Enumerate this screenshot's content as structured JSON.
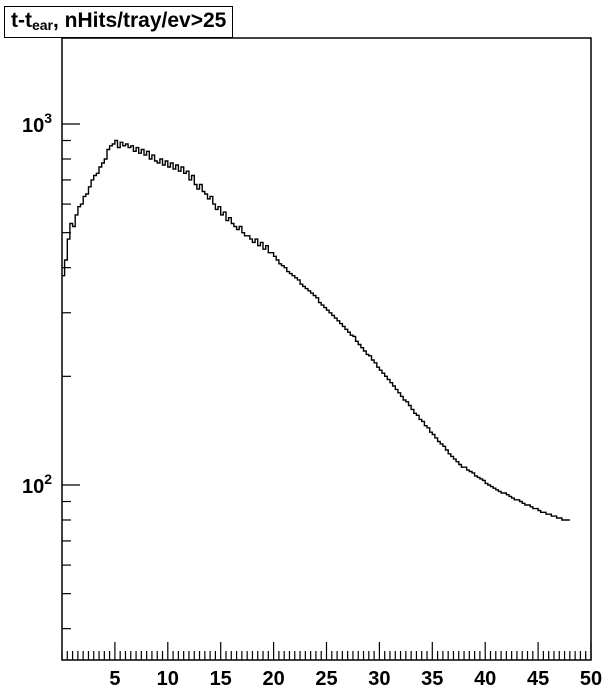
{
  "chart_data": {
    "type": "line",
    "style": "step-histogram",
    "title": {
      "main": "t-t",
      "subscript": "ear",
      "rest": ", nHits/tray/ev>25"
    },
    "xlabel": "",
    "ylabel": "",
    "xlim": [
      0,
      50
    ],
    "ylim": [
      40,
      2000
    ],
    "yscale": "log",
    "x_ticks": [
      5,
      10,
      15,
      20,
      25,
      30,
      35,
      40,
      45,
      50
    ],
    "x_tick_labels": [
      "5",
      "10",
      "15",
      "20",
      "25",
      "30",
      "35",
      "40",
      "45",
      "50"
    ],
    "y_tick_labels": [
      {
        "value": 1000,
        "base": "10",
        "exp": "3"
      },
      {
        "value": 100,
        "base": "10",
        "exp": "2"
      }
    ],
    "grid": false,
    "legend": "none",
    "series": [
      {
        "bin_width": 0.25,
        "x_start": 0,
        "values": [
          380,
          420,
          480,
          530,
          520,
          560,
          590,
          600,
          630,
          640,
          670,
          700,
          720,
          730,
          760,
          780,
          800,
          850,
          870,
          880,
          900,
          860,
          890,
          870,
          880,
          860,
          870,
          840,
          860,
          830,
          850,
          820,
          840,
          800,
          820,
          790,
          780,
          800,
          770,
          790,
          760,
          780,
          750,
          770,
          740,
          760,
          730,
          740,
          700,
          720,
          680,
          660,
          680,
          650,
          640,
          620,
          630,
          600,
          580,
          590,
          560,
          570,
          540,
          550,
          530,
          520,
          510,
          520,
          500,
          490,
          490,
          480,
          470,
          480,
          460,
          470,
          450,
          460,
          440,
          440,
          430,
          420,
          410,
          405,
          400,
          390,
          385,
          380,
          375,
          370,
          360,
          355,
          350,
          345,
          340,
          335,
          330,
          320,
          315,
          310,
          305,
          300,
          295,
          290,
          285,
          280,
          275,
          270,
          265,
          260,
          258,
          250,
          245,
          240,
          235,
          230,
          228,
          222,
          218,
          212,
          208,
          204,
          200,
          196,
          192,
          188,
          184,
          180,
          176,
          172,
          170,
          166,
          162,
          158,
          156,
          152,
          150,
          146,
          144,
          140,
          138,
          135,
          132,
          130,
          128,
          125,
          122,
          120,
          118,
          116,
          114,
          112,
          112,
          110,
          109,
          108,
          106,
          105,
          104,
          103,
          101,
          100,
          99,
          98,
          97,
          96,
          95,
          95,
          94,
          93,
          92,
          91,
          91,
          90,
          89,
          88,
          88,
          87,
          86,
          86,
          85,
          84,
          84,
          83,
          83,
          82,
          82,
          81,
          81,
          80,
          80,
          80
        ]
      }
    ]
  }
}
